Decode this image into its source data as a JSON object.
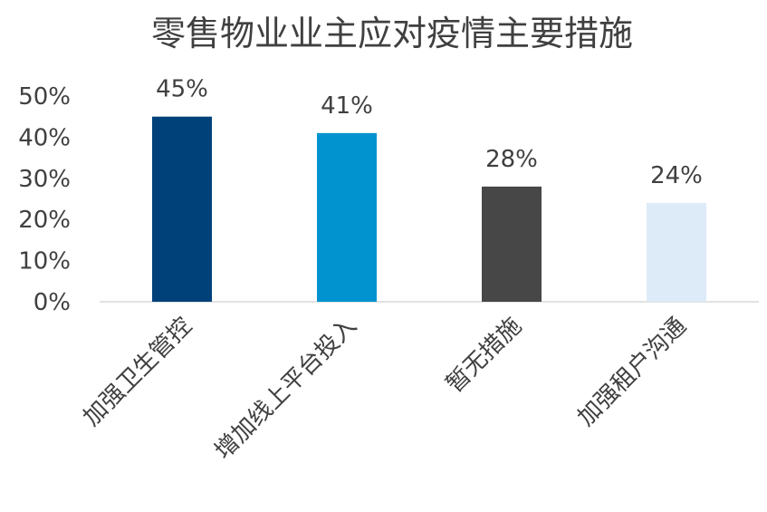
{
  "chart_data": {
    "type": "bar",
    "title": "零售物业业主应对疫情主要措施",
    "xlabel": "",
    "ylabel": "",
    "categories": [
      "加强卫生管控",
      "增加线上平台投入",
      "暂无措施",
      "加强租户沟通"
    ],
    "values": [
      45,
      41,
      28,
      24
    ],
    "data_labels": [
      "45%",
      "41%",
      "28%",
      "24%"
    ],
    "colors": [
      "#00417a",
      "#0093d0",
      "#474747",
      "#ddeaf7"
    ],
    "ylim": [
      0,
      50
    ],
    "yticks": [
      0,
      10,
      20,
      30,
      40,
      50
    ],
    "ytick_labels": [
      "0%",
      "10%",
      "20%",
      "30%",
      "40%",
      "50%"
    ],
    "grid": false,
    "legend": "none"
  }
}
